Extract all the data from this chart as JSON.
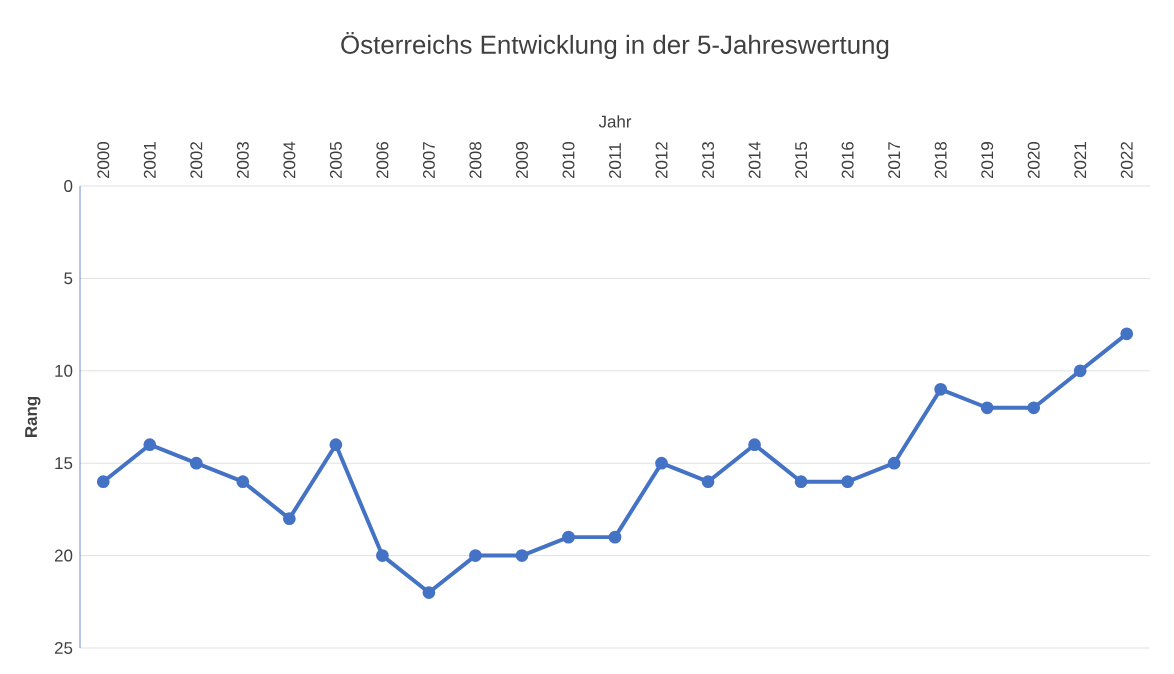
{
  "chart_data": {
    "type": "line",
    "title": "Österreichs Entwicklung in der 5-Jahreswertung",
    "xlabel": "Jahr",
    "ylabel": "Rang",
    "categories": [
      "2000",
      "2001",
      "2002",
      "2003",
      "2004",
      "2005",
      "2006",
      "2007",
      "2008",
      "2009",
      "2010",
      "2011",
      "2012",
      "2013",
      "2014",
      "2015",
      "2016",
      "2017",
      "2018",
      "2019",
      "2020",
      "2021",
      "2022"
    ],
    "values": [
      16,
      14,
      15,
      16,
      18,
      14,
      20,
      22,
      20,
      20,
      19,
      19,
      15,
      16,
      14,
      16,
      16,
      15,
      11,
      12,
      12,
      10,
      8
    ],
    "color": "#4472c4",
    "ylim": [
      25,
      0
    ],
    "yticks": [
      0,
      5,
      10,
      15,
      20,
      25
    ],
    "grid": "y",
    "marker": "circle",
    "line_style": "solid"
  }
}
